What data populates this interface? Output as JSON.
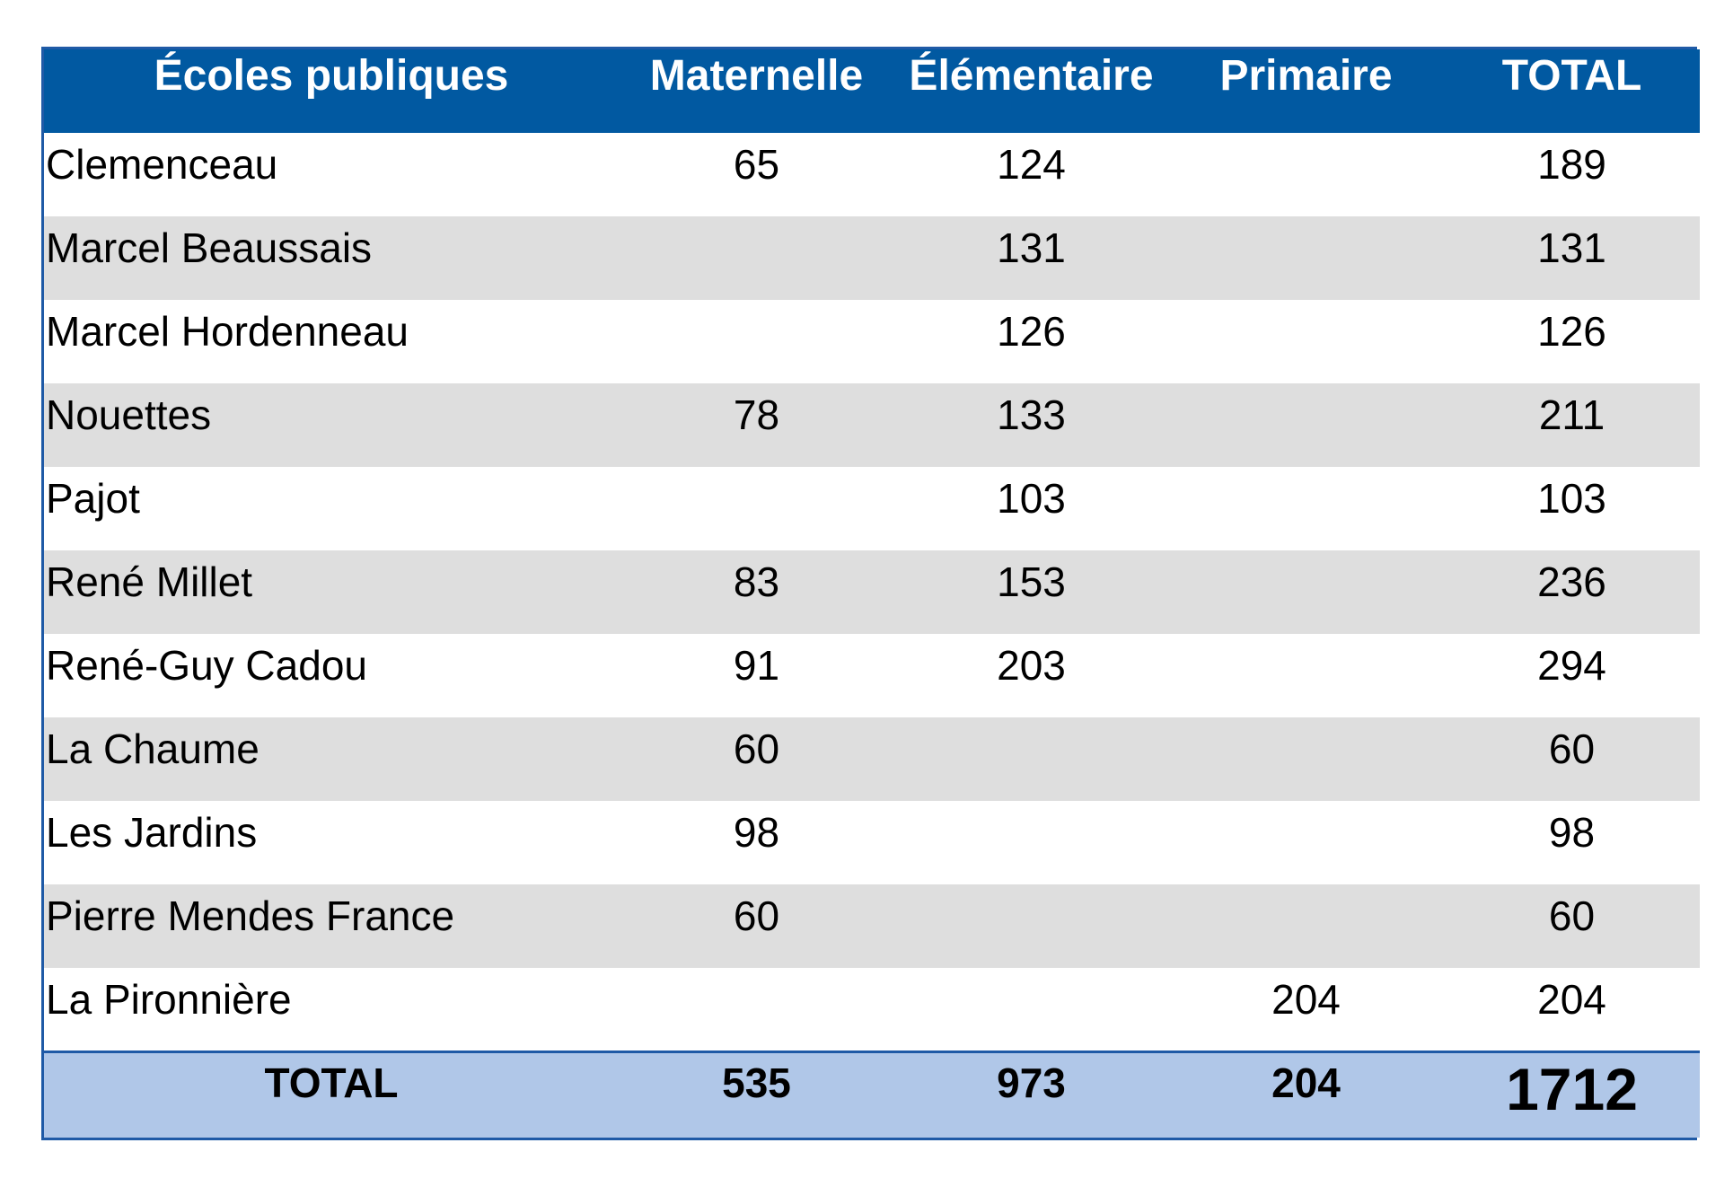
{
  "table": {
    "headers": [
      "Écoles publiques",
      "Maternelle",
      "Élémentaire",
      "Primaire",
      "TOTAL"
    ],
    "rows": [
      [
        "Clemenceau",
        "65",
        "124",
        "",
        "189"
      ],
      [
        "Marcel Beaussais",
        "",
        "131",
        "",
        "131"
      ],
      [
        "Marcel Hordenneau",
        "",
        "126",
        "",
        "126"
      ],
      [
        "Nouettes",
        "78",
        "133",
        "",
        "211"
      ],
      [
        "Pajot",
        "",
        "103",
        "",
        "103"
      ],
      [
        "René Millet",
        "83",
        "153",
        "",
        "236"
      ],
      [
        "René-Guy Cadou",
        "91",
        "203",
        "",
        "294"
      ],
      [
        "La Chaume",
        "60",
        "",
        "",
        "60"
      ],
      [
        "Les Jardins",
        "98",
        "",
        "",
        "98"
      ],
      [
        "Pierre Mendes France",
        "60",
        "",
        "",
        "60"
      ],
      [
        "La Pironnière",
        "",
        "",
        "204",
        "204"
      ]
    ],
    "totals": [
      "TOTAL",
      "535",
      "973",
      "204",
      "1712"
    ]
  },
  "colors": {
    "header_bg": "#0159a1",
    "header_text": "#ffffff",
    "row_alt_bg": "#dedede",
    "footer_bg": "#b0c7e8",
    "border": "#1f5aa6"
  }
}
